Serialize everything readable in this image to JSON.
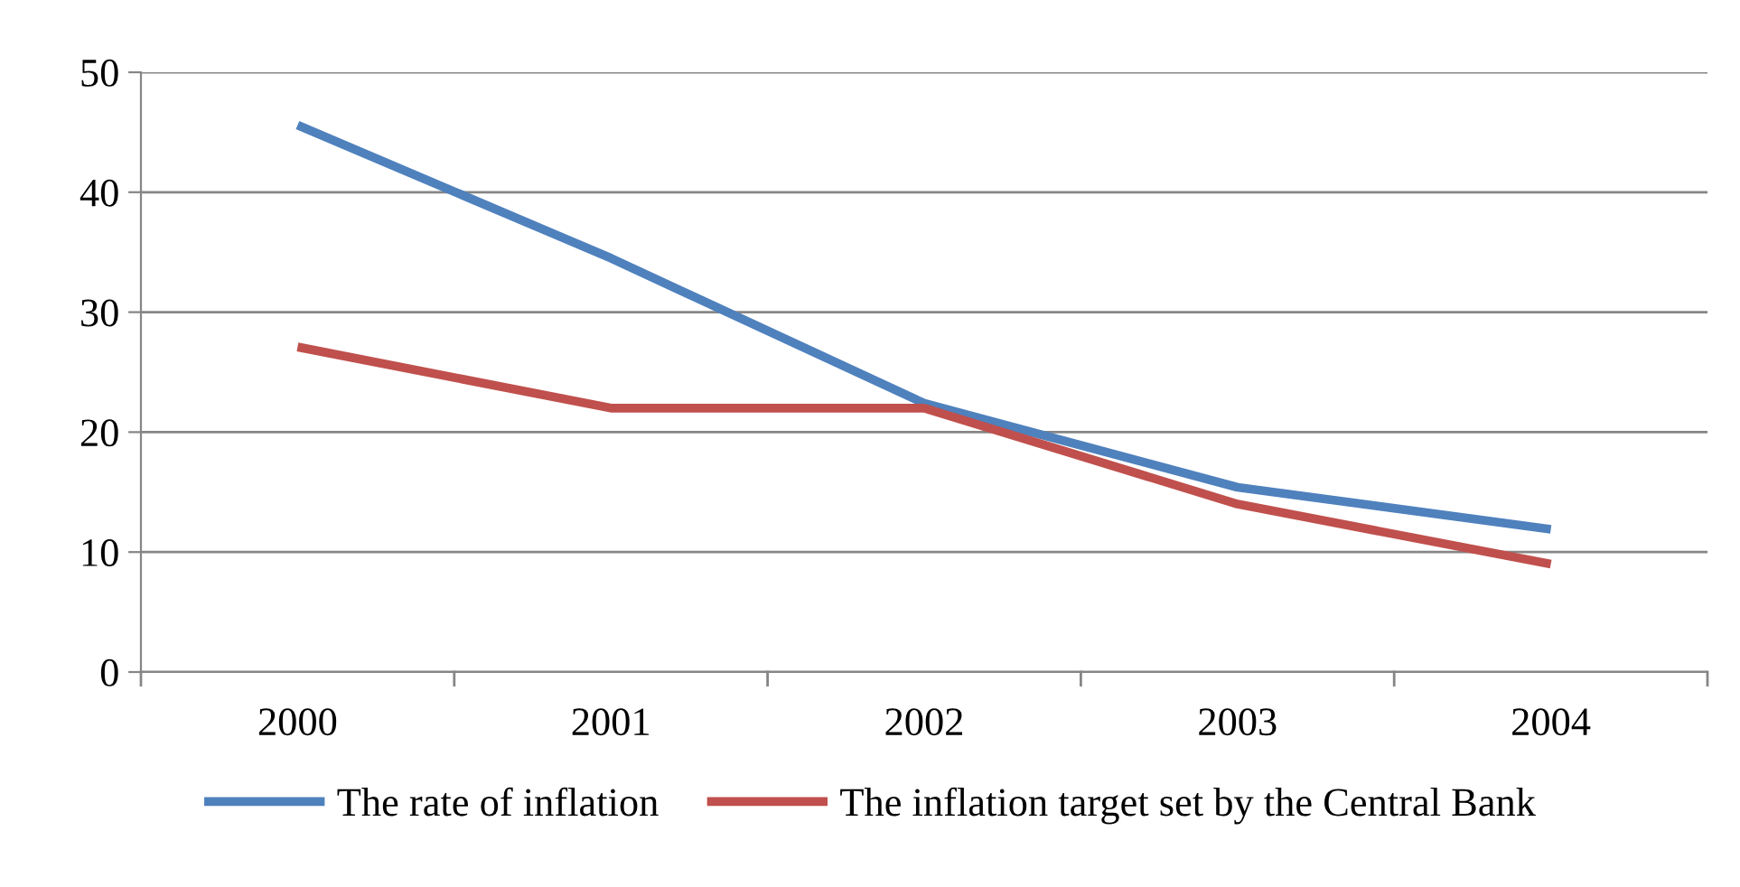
{
  "chart_data": {
    "type": "line",
    "categories": [
      "2000",
      "2001",
      "2002",
      "2003",
      "2004"
    ],
    "series": [
      {
        "name": "The rate of inflation",
        "color": "#4f81bd",
        "values": [
          45.6,
          34.5,
          22.4,
          15.4,
          11.9
        ]
      },
      {
        "name": "The inflation target set by the Central Bank",
        "color": "#c0504d",
        "values": [
          27.1,
          22,
          22,
          14,
          9
        ]
      }
    ],
    "ylim": [
      0,
      50
    ],
    "yticks": [
      0,
      10,
      20,
      30,
      40,
      50
    ],
    "grid": "y",
    "legend": "bottom",
    "line_style": "solid",
    "marker": "none"
  }
}
